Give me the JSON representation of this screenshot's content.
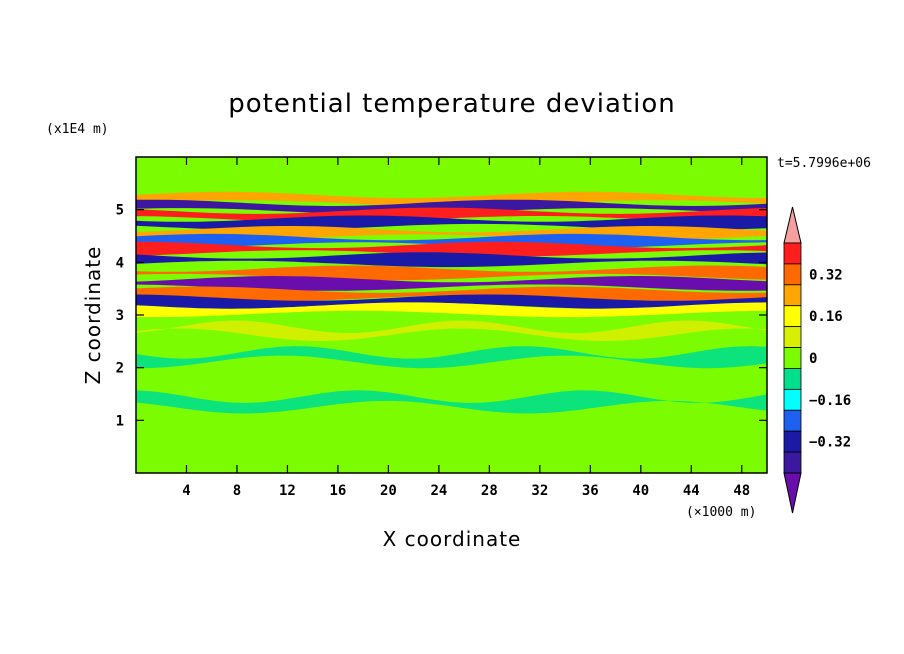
{
  "chart_data": {
    "type": "heatmap",
    "title": "potential temperature deviation",
    "xlabel": "X coordinate",
    "ylabel": "Z coordinate",
    "x_unit": "(×1000 m)",
    "y_unit": "(x1E4 m)",
    "time_label": "t=5.7996e+06",
    "xlim": [
      0,
      50
    ],
    "ylim": [
      0,
      6
    ],
    "x_ticks": [
      4,
      8,
      12,
      16,
      20,
      24,
      28,
      32,
      36,
      40,
      44,
      48
    ],
    "y_ticks": [
      1,
      2,
      3,
      4,
      5
    ],
    "colorbar": {
      "levels": [
        -0.48,
        -0.4,
        -0.32,
        -0.24,
        -0.16,
        -0.08,
        0,
        0.08,
        0.16,
        0.24,
        0.32,
        0.4,
        0.48
      ],
      "tick_labels": [
        "0.32",
        "0.16",
        "0",
        "−0.16",
        "−0.32"
      ],
      "tick_values": [
        0.32,
        0.16,
        0,
        -0.16,
        -0.32
      ],
      "colors": [
        "#6a0dad",
        "#3c17a0",
        "#1a1aa6",
        "#1e60f0",
        "#00ffff",
        "#00e08a",
        "#7cfc00",
        "#d8f000",
        "#ffff00",
        "#ffa500",
        "#ff6a00",
        "#ff1e1e",
        "#f4a0a0"
      ]
    },
    "bands": [
      {
        "z": 5.2,
        "value": 0.2
      },
      {
        "z": 5.05,
        "value": -0.4
      },
      {
        "z": 4.9,
        "value": 0.4
      },
      {
        "z": 4.75,
        "value": -0.36
      },
      {
        "z": 4.55,
        "value": 0.24
      },
      {
        "z": 4.4,
        "value": -0.2
      },
      {
        "z": 4.25,
        "value": 0.44
      },
      {
        "z": 4.05,
        "value": -0.32
      },
      {
        "z": 3.8,
        "value": 0.36
      },
      {
        "z": 3.6,
        "value": -0.44
      },
      {
        "z": 3.4,
        "value": 0.28
      },
      {
        "z": 3.25,
        "value": -0.36
      },
      {
        "z": 3.1,
        "value": 0.16
      }
    ],
    "background_value": 0.04
  }
}
